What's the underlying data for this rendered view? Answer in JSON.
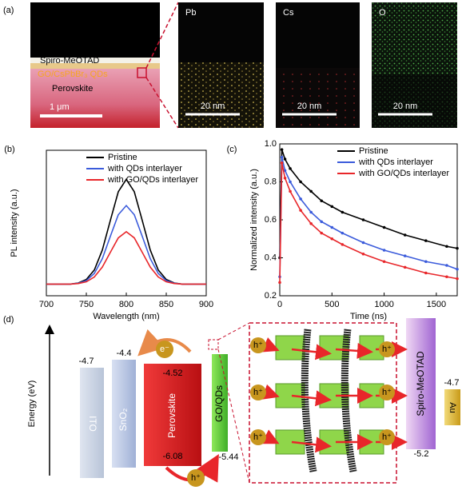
{
  "panel_a": {
    "label": "(a)",
    "layers": [
      "Spiro-MeOTAD",
      "GO/CsPbBr₃ QDs",
      "Perovskite"
    ],
    "scale_bar": "1 μm",
    "maps": [
      {
        "element": "Pb",
        "scale_bar": "20 nm"
      },
      {
        "element": "Cs",
        "scale_bar": "20 nm"
      },
      {
        "element": "O",
        "scale_bar": "20 nm"
      }
    ]
  },
  "chart_data": [
    {
      "type": "line",
      "panel_label": "(b)",
      "x_label": "Wavelength (nm)",
      "y_label": "PL intensity (a.u.)",
      "x": [
        700,
        710,
        720,
        730,
        740,
        750,
        760,
        770,
        780,
        790,
        800,
        810,
        820,
        830,
        840,
        850,
        860,
        870,
        880,
        890,
        900
      ],
      "xlim": [
        700,
        900
      ],
      "xticks": [
        700,
        750,
        800,
        850,
        900
      ],
      "ylim": [
        0,
        1
      ],
      "legend": "top-right",
      "series": [
        {
          "name": "Pristine",
          "color": "#000000",
          "values": [
            0.08,
            0.08,
            0.08,
            0.08,
            0.088,
            0.112,
            0.177,
            0.314,
            0.517,
            0.715,
            0.8,
            0.715,
            0.517,
            0.314,
            0.177,
            0.112,
            0.088,
            0.08,
            0.08,
            0.08,
            0.08
          ]
        },
        {
          "name": "with QDs interlayer",
          "color": "#3b5bdb",
          "values": [
            0.08,
            0.08,
            0.08,
            0.08,
            0.086,
            0.104,
            0.153,
            0.255,
            0.408,
            0.557,
            0.62,
            0.557,
            0.408,
            0.255,
            0.153,
            0.104,
            0.086,
            0.08,
            0.08,
            0.08,
            0.08
          ]
        },
        {
          "name": "with GO/QDs interlayer",
          "color": "#e8262a",
          "values": [
            0.08,
            0.08,
            0.08,
            0.08,
            0.084,
            0.096,
            0.129,
            0.197,
            0.298,
            0.398,
            0.44,
            0.398,
            0.298,
            0.197,
            0.129,
            0.096,
            0.084,
            0.08,
            0.08,
            0.08,
            0.08
          ]
        }
      ]
    },
    {
      "type": "line",
      "markers": true,
      "panel_label": "(c)",
      "x_label": "Time (ns)",
      "y_label": "Normalized intensity (a.u.)",
      "x": [
        0,
        20,
        50,
        100,
        200,
        300,
        400,
        500,
        600,
        800,
        1000,
        1200,
        1400,
        1600,
        1700
      ],
      "xlim": [
        0,
        1700
      ],
      "xticks": [
        0,
        500,
        1000,
        1500
      ],
      "ylim": [
        0.2,
        1.0
      ],
      "yticks": [
        0.2,
        0.4,
        0.6,
        0.8,
        {
          "value": 1.0,
          "label": "1.0"
        }
      ],
      "legend": "top-right",
      "series": [
        {
          "name": "Pristine",
          "color": "#000000",
          "values": [
            0.4,
            0.97,
            0.92,
            0.87,
            0.8,
            0.75,
            0.7,
            0.67,
            0.64,
            0.6,
            0.56,
            0.52,
            0.49,
            0.46,
            0.45
          ]
        },
        {
          "name": "with QDs interlayer",
          "color": "#3b5bdb",
          "values": [
            0.3,
            0.93,
            0.86,
            0.8,
            0.71,
            0.64,
            0.59,
            0.56,
            0.53,
            0.48,
            0.44,
            0.41,
            0.38,
            0.36,
            0.34
          ]
        },
        {
          "name": "with GO/QDs interlayer",
          "color": "#e8262a",
          "values": [
            0.27,
            0.9,
            0.82,
            0.75,
            0.65,
            0.58,
            0.53,
            0.5,
            0.47,
            0.42,
            0.38,
            0.35,
            0.32,
            0.3,
            0.29
          ]
        }
      ]
    }
  ],
  "panel_d": {
    "label": "(d)",
    "axis_label": "Energy (eV)",
    "electron": "e⁻",
    "hole": "h⁺",
    "layers": [
      {
        "name": "ITO",
        "levels": [
          -4.7
        ]
      },
      {
        "name": "SnO₂",
        "levels": [
          -4.4
        ]
      },
      {
        "name": "Perovskite",
        "levels": [
          -4.52,
          -6.08
        ]
      },
      {
        "name": "GO/QDs",
        "levels": [
          -5.44
        ]
      },
      {
        "name": "Spiro-MeOTAD",
        "levels": [
          -5.2
        ]
      },
      {
        "name": "Au",
        "levels": [
          -4.7
        ]
      }
    ]
  }
}
